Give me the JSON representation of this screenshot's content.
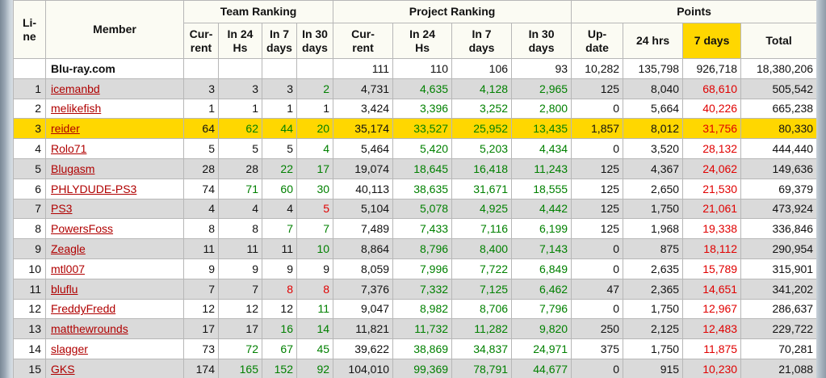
{
  "headers": {
    "line": "Li-\nne",
    "member": "Member",
    "team_ranking": "Team Ranking",
    "project_ranking": "Project Ranking",
    "points": "Points",
    "team_cols": [
      "Cur-\nrent",
      "In 24\nHs",
      "In 7\ndays",
      "In 30\ndays"
    ],
    "project_cols": [
      "Cur-\nrent",
      "In 24\nHs",
      "In 7\ndays",
      "In 30\ndays"
    ],
    "points_cols": [
      "Up-\ndate",
      "24 hrs",
      "7 days",
      "Total"
    ]
  },
  "summary": {
    "member": "Blu-ray.com",
    "project": [
      "111",
      "110",
      "106",
      "93"
    ],
    "points": [
      "10,282",
      "135,798",
      "926,718",
      "18,380,206"
    ]
  },
  "rows": [
    {
      "line": "1",
      "member": "icemanbd",
      "team": [
        "3",
        "3",
        "3",
        "2"
      ],
      "project": [
        "4,731",
        "4,635",
        "4,128",
        "2,965"
      ],
      "points": [
        "125",
        "8,040",
        "68,610",
        "505,542"
      ],
      "tc": [
        "",
        "",
        "",
        "g"
      ],
      "pc": [
        "",
        "g",
        "g",
        "g"
      ]
    },
    {
      "line": "2",
      "member": "melikefish",
      "team": [
        "1",
        "1",
        "1",
        "1"
      ],
      "project": [
        "3,424",
        "3,396",
        "3,252",
        "2,800"
      ],
      "points": [
        "0",
        "5,664",
        "40,226",
        "665,238"
      ],
      "tc": [
        "",
        "",
        "",
        ""
      ],
      "pc": [
        "",
        "g",
        "g",
        "g"
      ]
    },
    {
      "line": "3",
      "member": "reider",
      "team": [
        "64",
        "62",
        "44",
        "20"
      ],
      "project": [
        "35,174",
        "33,527",
        "25,952",
        "13,435"
      ],
      "points": [
        "1,857",
        "8,012",
        "31,756",
        "80,330"
      ],
      "tc": [
        "",
        "g",
        "g",
        "g"
      ],
      "pc": [
        "",
        "g",
        "g",
        "g"
      ],
      "highlight": true
    },
    {
      "line": "4",
      "member": "Rolo71",
      "team": [
        "5",
        "5",
        "5",
        "4"
      ],
      "project": [
        "5,464",
        "5,420",
        "5,203",
        "4,434"
      ],
      "points": [
        "0",
        "3,520",
        "28,132",
        "444,440"
      ],
      "tc": [
        "",
        "",
        "",
        "g"
      ],
      "pc": [
        "",
        "g",
        "g",
        "g"
      ]
    },
    {
      "line": "5",
      "member": "Blugasm",
      "team": [
        "28",
        "28",
        "22",
        "17"
      ],
      "project": [
        "19,074",
        "18,645",
        "16,418",
        "11,243"
      ],
      "points": [
        "125",
        "4,367",
        "24,062",
        "149,636"
      ],
      "tc": [
        "",
        "",
        "g",
        "g"
      ],
      "pc": [
        "",
        "g",
        "g",
        "g"
      ]
    },
    {
      "line": "6",
      "member": "PHLYDUDE-PS3",
      "team": [
        "74",
        "71",
        "60",
        "30"
      ],
      "project": [
        "40,113",
        "38,635",
        "31,671",
        "18,555"
      ],
      "points": [
        "125",
        "2,650",
        "21,530",
        "69,379"
      ],
      "tc": [
        "",
        "g",
        "g",
        "g"
      ],
      "pc": [
        "",
        "g",
        "g",
        "g"
      ]
    },
    {
      "line": "7",
      "member": "PS3",
      "team": [
        "4",
        "4",
        "4",
        "5"
      ],
      "project": [
        "5,104",
        "5,078",
        "4,925",
        "4,442"
      ],
      "points": [
        "125",
        "1,750",
        "21,061",
        "473,924"
      ],
      "tc": [
        "",
        "",
        "",
        "r"
      ],
      "pc": [
        "",
        "g",
        "g",
        "g"
      ]
    },
    {
      "line": "8",
      "member": "PowersFoss",
      "team": [
        "8",
        "8",
        "7",
        "7"
      ],
      "project": [
        "7,489",
        "7,433",
        "7,116",
        "6,199"
      ],
      "points": [
        "125",
        "1,968",
        "19,338",
        "336,846"
      ],
      "tc": [
        "",
        "",
        "g",
        "g"
      ],
      "pc": [
        "",
        "g",
        "g",
        "g"
      ]
    },
    {
      "line": "9",
      "member": "Zeagle",
      "team": [
        "11",
        "11",
        "11",
        "10"
      ],
      "project": [
        "8,864",
        "8,796",
        "8,400",
        "7,143"
      ],
      "points": [
        "0",
        "875",
        "18,112",
        "290,954"
      ],
      "tc": [
        "",
        "",
        "",
        "g"
      ],
      "pc": [
        "",
        "g",
        "g",
        "g"
      ]
    },
    {
      "line": "10",
      "member": "mtl007",
      "team": [
        "9",
        "9",
        "9",
        "9"
      ],
      "project": [
        "8,059",
        "7,996",
        "7,722",
        "6,849"
      ],
      "points": [
        "0",
        "2,635",
        "15,789",
        "315,901"
      ],
      "tc": [
        "",
        "",
        "",
        ""
      ],
      "pc": [
        "",
        "g",
        "g",
        "g"
      ]
    },
    {
      "line": "11",
      "member": "bluflu",
      "team": [
        "7",
        "7",
        "8",
        "8"
      ],
      "project": [
        "7,376",
        "7,332",
        "7,125",
        "6,462"
      ],
      "points": [
        "47",
        "2,365",
        "14,651",
        "341,202"
      ],
      "tc": [
        "",
        "",
        "r",
        "r"
      ],
      "pc": [
        "",
        "g",
        "g",
        "g"
      ]
    },
    {
      "line": "12",
      "member": "FreddyFredd",
      "team": [
        "12",
        "12",
        "12",
        "11"
      ],
      "project": [
        "9,047",
        "8,982",
        "8,706",
        "7,796"
      ],
      "points": [
        "0",
        "1,750",
        "12,967",
        "286,637"
      ],
      "tc": [
        "",
        "",
        "",
        "g"
      ],
      "pc": [
        "",
        "g",
        "g",
        "g"
      ]
    },
    {
      "line": "13",
      "member": "matthewrounds",
      "team": [
        "17",
        "17",
        "16",
        "14"
      ],
      "project": [
        "11,821",
        "11,732",
        "11,282",
        "9,820"
      ],
      "points": [
        "250",
        "2,125",
        "12,483",
        "229,722"
      ],
      "tc": [
        "",
        "",
        "g",
        "g"
      ],
      "pc": [
        "",
        "g",
        "g",
        "g"
      ]
    },
    {
      "line": "14",
      "member": "slagger",
      "team": [
        "73",
        "72",
        "67",
        "45"
      ],
      "project": [
        "39,622",
        "38,869",
        "34,837",
        "24,971"
      ],
      "points": [
        "375",
        "1,750",
        "11,875",
        "70,281"
      ],
      "tc": [
        "",
        "g",
        "g",
        "g"
      ],
      "pc": [
        "",
        "g",
        "g",
        "g"
      ]
    },
    {
      "line": "15",
      "member": "GKS",
      "team": [
        "174",
        "165",
        "152",
        "92"
      ],
      "project": [
        "104,010",
        "99,369",
        "78,791",
        "44,677"
      ],
      "points": [
        "0",
        "915",
        "10,230",
        "21,088"
      ],
      "tc": [
        "",
        "g",
        "g",
        "g"
      ],
      "pc": [
        "",
        "g",
        "g",
        "g"
      ]
    }
  ]
}
